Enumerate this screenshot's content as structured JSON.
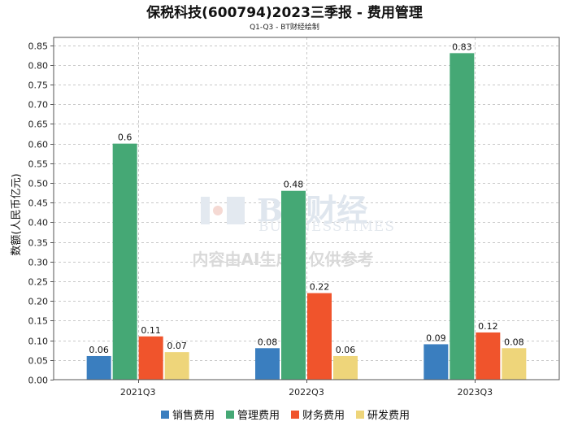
{
  "chart_data": {
    "type": "bar",
    "title": "保税科技(600794)2023三季报 - 费用管理",
    "subtitle": "Q1-Q3 - BT财经绘制",
    "xlabel": "",
    "ylabel": "数额(人民币亿元)",
    "ylim": [
      0,
      0.87
    ],
    "yticks": [
      0.0,
      0.05,
      0.1,
      0.15,
      0.2,
      0.25,
      0.3,
      0.35,
      0.4,
      0.45,
      0.5,
      0.55,
      0.6,
      0.65,
      0.7,
      0.75,
      0.8,
      0.85
    ],
    "ytick_labels": [
      "0.00",
      "0.05",
      "0.10",
      "0.15",
      "0.20",
      "0.25",
      "0.30",
      "0.35",
      "0.40",
      "0.45",
      "0.50",
      "0.55",
      "0.60",
      "0.65",
      "0.70",
      "0.75",
      "0.80",
      "0.85"
    ],
    "grid": true,
    "legend_position": "bottom",
    "categories": [
      "2021Q3",
      "2022Q3",
      "2023Q3"
    ],
    "series": [
      {
        "name": "销售费用",
        "color": "#3a7ebf",
        "values": [
          0.06,
          0.08,
          0.09
        ],
        "labels": [
          "0.06",
          "0.08",
          "0.09"
        ]
      },
      {
        "name": "管理费用",
        "color": "#45a875",
        "values": [
          0.6,
          0.48,
          0.83
        ],
        "labels": [
          "0.6",
          "0.48",
          "0.83"
        ]
      },
      {
        "name": "财务费用",
        "color": "#f0542c",
        "values": [
          0.11,
          0.22,
          0.12
        ],
        "labels": [
          "0.11",
          "0.22",
          "0.12"
        ]
      },
      {
        "name": "研发费用",
        "color": "#eed57a",
        "values": [
          0.07,
          0.06,
          0.08
        ],
        "labels": [
          "0.07",
          "0.06",
          "0.08"
        ]
      }
    ]
  },
  "watermark": {
    "logo_text": "BT财经",
    "logo_sub": "BUSINESSTIMES",
    "notice": "内容由AI生成，仅供参考"
  }
}
